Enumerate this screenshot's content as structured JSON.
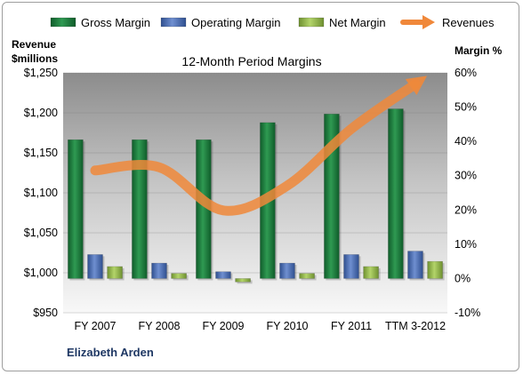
{
  "chart_data": {
    "type": "bar",
    "title": "12-Month Period Margins",
    "categories": [
      "FY 2007",
      "FY 2008",
      "FY 2009",
      "FY 2010",
      "FY 2011",
      "TTM 3-2012"
    ],
    "left_axis": {
      "label_lines": [
        "Revenue",
        "$millions"
      ],
      "min": 950,
      "max": 1250,
      "step": 50,
      "tick_labels": [
        "$950",
        "$1,000",
        "$1,050",
        "$1,100",
        "$1,150",
        "$1,200",
        "$1,250"
      ]
    },
    "right_axis": {
      "label": "Margin %",
      "min": -10,
      "max": 60,
      "step": 10,
      "tick_labels": [
        "-10%",
        "0%",
        "10%",
        "20%",
        "30%",
        "40%",
        "50%",
        "60%"
      ]
    },
    "series": [
      {
        "name": "Gross Margin",
        "type": "bar",
        "axis": "right",
        "color": "#1e7a3c",
        "values": [
          40.5,
          40.5,
          40.5,
          45.5,
          48,
          49.5
        ]
      },
      {
        "name": "Operating Margin",
        "type": "bar",
        "axis": "right",
        "color": "#4f6fb5",
        "values": [
          7,
          4.5,
          2,
          4.5,
          7,
          8
        ]
      },
      {
        "name": "Net Margin",
        "type": "bar",
        "axis": "right",
        "color": "#92b84a",
        "values": [
          3.5,
          1.5,
          -1,
          1.5,
          3.5,
          5
        ]
      },
      {
        "name": "Revenues",
        "type": "line",
        "axis": "left",
        "color": "#f0883a",
        "values": [
          1128,
          1132,
          1078,
          1109,
          1180,
          1236
        ]
      }
    ],
    "grid": true,
    "legend_position": "top",
    "annotation": "Elizabeth Arden"
  }
}
